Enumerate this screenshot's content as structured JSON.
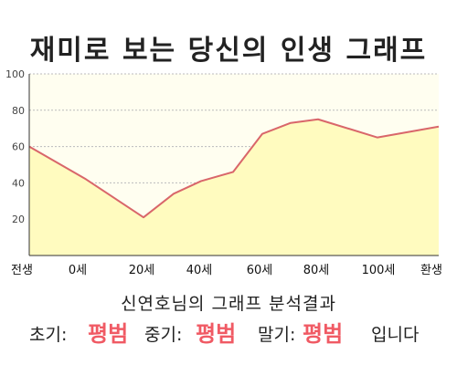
{
  "title": "재미로 보는 당신의 인생 그래프",
  "chart_data": {
    "type": "area",
    "ylim": [
      0,
      100
    ],
    "y_ticks": [
      "100",
      "80",
      "60",
      "40",
      "20"
    ],
    "x_tick_labels": [
      "전생",
      "0세",
      "20세",
      "40세",
      "60세",
      "80세",
      "100세",
      "환생"
    ],
    "points": [
      {
        "x": "전생",
        "y": 60
      },
      {
        "x": "0세",
        "y": 42
      },
      {
        "x": "20세",
        "y": 21
      },
      {
        "x": "",
        "y": 34
      },
      {
        "x": "40세",
        "y": 41
      },
      {
        "x": "",
        "y": 46
      },
      {
        "x": "60세",
        "y": 67
      },
      {
        "x": "",
        "y": 73
      },
      {
        "x": "80세",
        "y": 75
      },
      {
        "x": "100세",
        "y": 65
      },
      {
        "x": "환생",
        "y": 71
      }
    ],
    "colors": {
      "line": "#d9666a",
      "fill": "#fffbbf",
      "grid": "#bbbbbb"
    }
  },
  "result": {
    "title": "신연호님의 그래프 분석결과",
    "early_label": "초기:",
    "early_value": "평범",
    "middle_label": "중기:",
    "middle_value": "평범",
    "late_label": "말기:",
    "late_value": "평범",
    "suffix": "입니다"
  }
}
